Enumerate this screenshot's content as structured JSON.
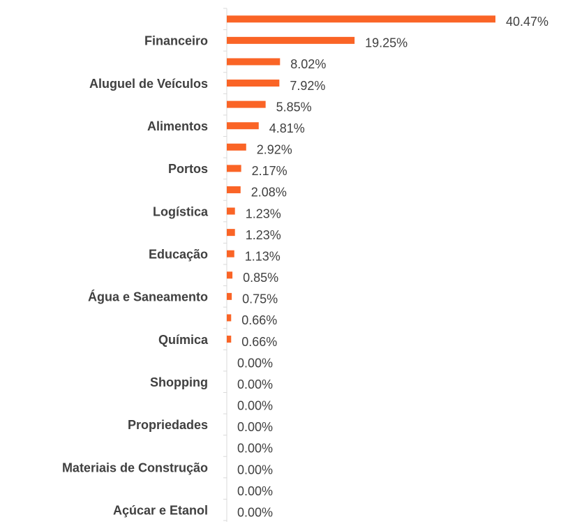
{
  "chart_data": {
    "type": "hbar",
    "categories": [
      null,
      "Financeiro",
      null,
      "Aluguel de Veículos",
      null,
      "Alimentos",
      null,
      "Portos",
      null,
      "Logística",
      null,
      "Educação",
      null,
      "Água e Saneamento",
      null,
      "Química",
      null,
      "Shopping",
      null,
      "Propriedades",
      null,
      "Materiais de Construção",
      null,
      "Açúcar e Etanol"
    ],
    "values": [
      40.47,
      19.25,
      8.02,
      7.92,
      5.85,
      4.81,
      2.92,
      2.17,
      2.08,
      1.23,
      1.23,
      1.13,
      0.85,
      0.75,
      0.66,
      0.66,
      0,
      0,
      0,
      0,
      0,
      0,
      0,
      0
    ],
    "value_labels": [
      "40.47%",
      "19.25%",
      "8.02%",
      "7.92%",
      "5.85%",
      "4.81%",
      "2.92%",
      "2.17%",
      "2.08%",
      "1.23%",
      "1.23%",
      "1.13%",
      "0.85%",
      "0.75%",
      "0.66%",
      "0.66%",
      "0.00%",
      "0.00%",
      "0.00%",
      "0.00%",
      "0.00%",
      "0.00%",
      "0.00%",
      "0.00%"
    ],
    "color": "#fa6426"
  }
}
